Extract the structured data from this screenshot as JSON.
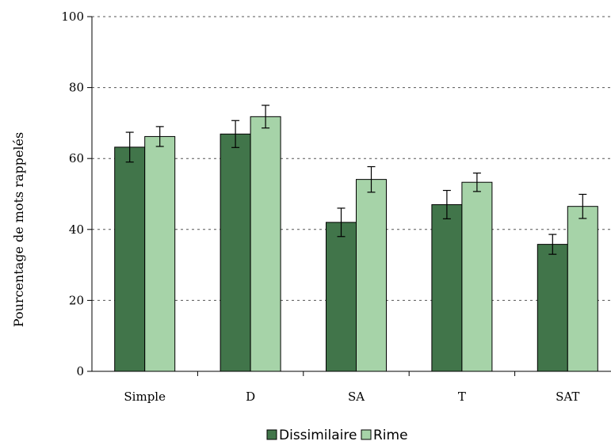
{
  "chart_data": {
    "type": "bar",
    "categories": [
      "Simple",
      "D",
      "SA",
      "T",
      "SAT"
    ],
    "series": [
      {
        "name": "Dissimilaire",
        "color": "#41754a",
        "values": [
          63.2,
          66.9,
          42.0,
          47.0,
          35.8
        ],
        "errors": [
          4.2,
          3.8,
          4.0,
          4.0,
          2.8
        ]
      },
      {
        "name": "Rime",
        "color": "#a6d3a8",
        "values": [
          66.2,
          71.8,
          54.1,
          53.3,
          46.5
        ],
        "errors": [
          2.8,
          3.2,
          3.6,
          2.6,
          3.4
        ]
      }
    ],
    "title": "",
    "xlabel": "",
    "ylabel": "Pourcentage de mots rappelés",
    "ylim": [
      0,
      100
    ],
    "yticks": [
      "0",
      "20",
      "40",
      "60",
      "80",
      "100"
    ],
    "grid": "horizontal-dotted",
    "legend_position": "bottom-center"
  }
}
